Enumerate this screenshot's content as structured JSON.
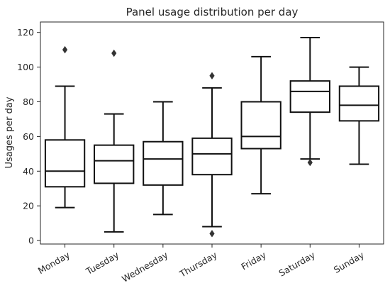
{
  "chart_data": {
    "type": "boxplot",
    "title": "Panel usage distribution per day",
    "xlabel": "",
    "ylabel": "Usages per day",
    "ylim": [
      -2,
      126
    ],
    "yticks": [
      0,
      20,
      40,
      60,
      80,
      100,
      120
    ],
    "grid": false,
    "legend": "none",
    "categories": [
      "Monday",
      "Tuesday",
      "Wednesday",
      "Thursday",
      "Friday",
      "Saturday",
      "Sunday"
    ],
    "series": [
      {
        "whisker_low": 19,
        "q1": 31,
        "median": 40,
        "q3": 58,
        "whisker_high": 89,
        "outliers": [
          110
        ]
      },
      {
        "whisker_low": 5,
        "q1": 33,
        "median": 46,
        "q3": 55,
        "whisker_high": 73,
        "outliers": [
          108
        ]
      },
      {
        "whisker_low": 15,
        "q1": 32,
        "median": 47,
        "q3": 57,
        "whisker_high": 80,
        "outliers": []
      },
      {
        "whisker_low": 8,
        "q1": 38,
        "median": 50,
        "q3": 59,
        "whisker_high": 88,
        "outliers": [
          95,
          4
        ]
      },
      {
        "whisker_low": 27,
        "q1": 53,
        "median": 60,
        "q3": 80,
        "whisker_high": 106,
        "outliers": []
      },
      {
        "whisker_low": 47,
        "q1": 74,
        "median": 86,
        "q3": 92,
        "whisker_high": 117,
        "outliers": [
          45
        ]
      },
      {
        "whisker_low": 44,
        "q1": 69,
        "median": 78,
        "q3": 89,
        "whisker_high": 100,
        "outliers": []
      }
    ],
    "box_color": "#ffffff",
    "line_color": "#111111"
  }
}
